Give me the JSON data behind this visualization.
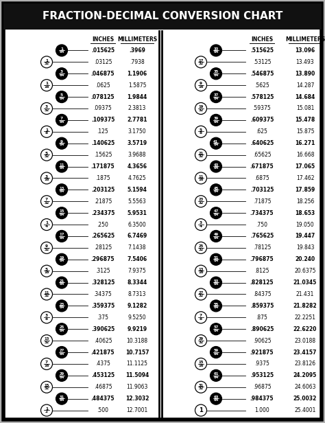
{
  "title": "FRACTION-DECIMAL CONVERSION CHART",
  "rows_left": [
    {
      "frac_num": "1",
      "frac_den": "64",
      "black": true,
      "decimal": ".015625",
      "mm": ".3969"
    },
    {
      "frac_num": "1",
      "frac_den": "32",
      "black": false,
      "decimal": ".03125",
      "mm": ".7938"
    },
    {
      "frac_num": "3",
      "frac_den": "64",
      "black": true,
      "decimal": ".046875",
      "mm": "1.1906"
    },
    {
      "frac_num": "1",
      "frac_den": "16",
      "black": false,
      "decimal": ".0625",
      "mm": "1.5875"
    },
    {
      "frac_num": "5",
      "frac_den": "64",
      "black": true,
      "decimal": ".078125",
      "mm": "1.9844"
    },
    {
      "frac_num": "3",
      "frac_den": "32",
      "black": false,
      "decimal": ".09375",
      "mm": "2.3813"
    },
    {
      "frac_num": "7",
      "frac_den": "64",
      "black": true,
      "decimal": ".109375",
      "mm": "2.7781"
    },
    {
      "frac_num": "1",
      "frac_den": "8",
      "black": false,
      "decimal": ".125",
      "mm": "3.1750"
    },
    {
      "frac_num": "9",
      "frac_den": "64",
      "black": true,
      "decimal": ".140625",
      "mm": "3.5719"
    },
    {
      "frac_num": "5",
      "frac_den": "32",
      "black": false,
      "decimal": ".15625",
      "mm": "3.9688"
    },
    {
      "frac_num": "11",
      "frac_den": "64",
      "black": true,
      "decimal": ".171875",
      "mm": "4.3656"
    },
    {
      "frac_num": "3",
      "frac_den": "16",
      "black": false,
      "decimal": ".1875",
      "mm": "4.7625"
    },
    {
      "frac_num": "13",
      "frac_den": "64",
      "black": true,
      "decimal": ".203125",
      "mm": "5.1594"
    },
    {
      "frac_num": "7",
      "frac_den": "32",
      "black": false,
      "decimal": ".21875",
      "mm": "5.5563"
    },
    {
      "frac_num": "15",
      "frac_den": "64",
      "black": true,
      "decimal": ".234375",
      "mm": "5.9531"
    },
    {
      "frac_num": "1",
      "frac_den": "4",
      "black": false,
      "decimal": ".250",
      "mm": "6.3500"
    },
    {
      "frac_num": "17",
      "frac_den": "64",
      "black": true,
      "decimal": ".265625",
      "mm": "6.7469"
    },
    {
      "frac_num": "9",
      "frac_den": "32",
      "black": false,
      "decimal": ".28125",
      "mm": "7.1438"
    },
    {
      "frac_num": "19",
      "frac_den": "64",
      "black": true,
      "decimal": ".296875",
      "mm": "7.5406"
    },
    {
      "frac_num": "5",
      "frac_den": "16",
      "black": false,
      "decimal": ".3125",
      "mm": "7.9375"
    },
    {
      "frac_num": "21",
      "frac_den": "64",
      "black": true,
      "decimal": ".328125",
      "mm": "8.3344"
    },
    {
      "frac_num": "11",
      "frac_den": "32",
      "black": false,
      "decimal": ".34375",
      "mm": "8.7313"
    },
    {
      "frac_num": "23",
      "frac_den": "64",
      "black": true,
      "decimal": ".359375",
      "mm": "9.1282"
    },
    {
      "frac_num": "3",
      "frac_den": "8",
      "black": false,
      "decimal": ".375",
      "mm": "9.5250"
    },
    {
      "frac_num": "25",
      "frac_den": "64",
      "black": true,
      "decimal": ".390625",
      "mm": "9.9219"
    },
    {
      "frac_num": "13",
      "frac_den": "32",
      "black": false,
      "decimal": ".40625",
      "mm": "10.3188"
    },
    {
      "frac_num": "27",
      "frac_den": "64",
      "black": true,
      "decimal": ".421875",
      "mm": "10.7157"
    },
    {
      "frac_num": "7",
      "frac_den": "16",
      "black": false,
      "decimal": ".4375",
      "mm": "11.1125"
    },
    {
      "frac_num": "29",
      "frac_den": "64",
      "black": true,
      "decimal": ".453125",
      "mm": "11.5094"
    },
    {
      "frac_num": "15",
      "frac_den": "32",
      "black": false,
      "decimal": ".46875",
      "mm": "11.9063"
    },
    {
      "frac_num": "31",
      "frac_den": "64",
      "black": true,
      "decimal": ".484375",
      "mm": "12.3032"
    },
    {
      "frac_num": "1",
      "frac_den": "2",
      "black": false,
      "decimal": ".500",
      "mm": "12.7001"
    }
  ],
  "rows_right": [
    {
      "frac_num": "33",
      "frac_den": "64",
      "black": true,
      "decimal": ".515625",
      "mm": "13.096"
    },
    {
      "frac_num": "17",
      "frac_den": "32",
      "black": false,
      "decimal": ".53125",
      "mm": "13.493"
    },
    {
      "frac_num": "35",
      "frac_den": "64",
      "black": true,
      "decimal": ".546875",
      "mm": "13.890"
    },
    {
      "frac_num": "9",
      "frac_den": "16",
      "black": false,
      "decimal": ".5625",
      "mm": "14.287"
    },
    {
      "frac_num": "37",
      "frac_den": "64",
      "black": true,
      "decimal": ".578125",
      "mm": "14.684"
    },
    {
      "frac_num": "19",
      "frac_den": "32",
      "black": false,
      "decimal": ".59375",
      "mm": "15.081"
    },
    {
      "frac_num": "39",
      "frac_den": "64",
      "black": true,
      "decimal": ".609375",
      "mm": "15.478"
    },
    {
      "frac_num": "5",
      "frac_den": "8",
      "black": false,
      "decimal": ".625",
      "mm": "15.875"
    },
    {
      "frac_num": "41",
      "frac_den": "64",
      "black": true,
      "decimal": ".640625",
      "mm": "16.271"
    },
    {
      "frac_num": "21",
      "frac_den": "32",
      "black": false,
      "decimal": ".65625",
      "mm": "16.668"
    },
    {
      "frac_num": "43",
      "frac_den": "64",
      "black": true,
      "decimal": ".671875",
      "mm": "17.065"
    },
    {
      "frac_num": "11",
      "frac_den": "16",
      "black": false,
      "decimal": ".6875",
      "mm": "17.462"
    },
    {
      "frac_num": "45",
      "frac_den": "64",
      "black": true,
      "decimal": ".703125",
      "mm": "17.859"
    },
    {
      "frac_num": "23",
      "frac_den": "32",
      "black": false,
      "decimal": ".71875",
      "mm": "18.256"
    },
    {
      "frac_num": "47",
      "frac_den": "64",
      "black": true,
      "decimal": ".734375",
      "mm": "18.653"
    },
    {
      "frac_num": "3",
      "frac_den": "4",
      "black": false,
      "decimal": ".750",
      "mm": "19.050"
    },
    {
      "frac_num": "49",
      "frac_den": "64",
      "black": true,
      "decimal": ".765625",
      "mm": "19.447"
    },
    {
      "frac_num": "25",
      "frac_den": "32",
      "black": false,
      "decimal": ".78125",
      "mm": "19.843"
    },
    {
      "frac_num": "51",
      "frac_den": "64",
      "black": true,
      "decimal": ".796875",
      "mm": "20.240"
    },
    {
      "frac_num": "13",
      "frac_den": "16",
      "black": false,
      "decimal": ".8125",
      "mm": "20.6375"
    },
    {
      "frac_num": "53",
      "frac_den": "64",
      "black": true,
      "decimal": ".828125",
      "mm": "21.0345"
    },
    {
      "frac_num": "27",
      "frac_den": "32",
      "black": false,
      "decimal": ".84375",
      "mm": "21.431"
    },
    {
      "frac_num": "55",
      "frac_den": "64",
      "black": true,
      "decimal": ".859375",
      "mm": "21.8282"
    },
    {
      "frac_num": "7",
      "frac_den": "8",
      "black": false,
      "decimal": ".875",
      "mm": "22.2251"
    },
    {
      "frac_num": "57",
      "frac_den": "64",
      "black": true,
      "decimal": ".890625",
      "mm": "22.6220"
    },
    {
      "frac_num": "29",
      "frac_den": "32",
      "black": false,
      "decimal": ".90625",
      "mm": "23.0188"
    },
    {
      "frac_num": "59",
      "frac_den": "64",
      "black": true,
      "decimal": ".921875",
      "mm": "23.4157"
    },
    {
      "frac_num": "15",
      "frac_den": "16",
      "black": false,
      "decimal": ".9375",
      "mm": "23.8126"
    },
    {
      "frac_num": "61",
      "frac_den": "64",
      "black": true,
      "decimal": ".953125",
      "mm": "24.2095"
    },
    {
      "frac_num": "31",
      "frac_den": "32",
      "black": false,
      "decimal": ".96875",
      "mm": "24.6063"
    },
    {
      "frac_num": "63",
      "frac_den": "64",
      "black": true,
      "decimal": ".984375",
      "mm": "25.0032"
    },
    {
      "frac_num": "1",
      "frac_den": "",
      "black": false,
      "decimal": "1.000",
      "mm": "25.4001"
    }
  ]
}
